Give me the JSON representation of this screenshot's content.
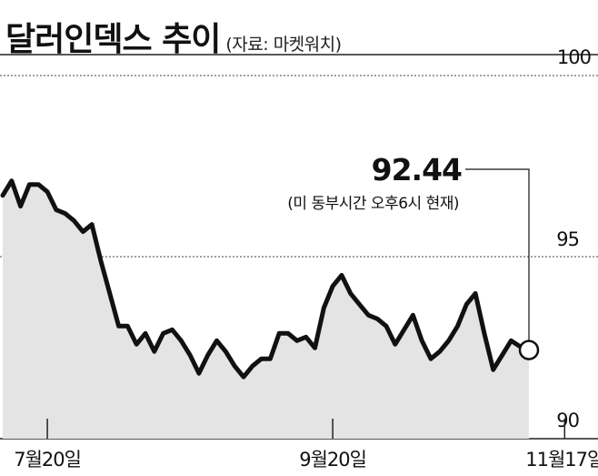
{
  "header": {
    "title": "달러인덱스 추이",
    "source": "(자료: 마켓워치)"
  },
  "chart_data": {
    "type": "area",
    "title": "달러인덱스 추이",
    "source": "(자료: 마켓워치)",
    "xlabel": "",
    "ylabel": "",
    "ylim": [
      90,
      100
    ],
    "grid": "dotted horizontal at 95 and 100",
    "yticks": [
      "100",
      "95",
      "90"
    ],
    "xticks": [
      {
        "label": "7월20일",
        "index": 5
      },
      {
        "label": "9월20일",
        "index": 37
      },
      {
        "label": "11월17일",
        "index": 63
      }
    ],
    "annotation": {
      "value": "92.44",
      "note": "(미 동부시간 오후6시 현재)"
    },
    "series": [
      {
        "values": [
          96.7,
          97.1,
          96.4,
          97.0,
          97.0,
          96.8,
          96.3,
          96.2,
          96.0,
          95.7,
          95.9,
          94.9,
          94.0,
          93.1,
          93.1,
          92.6,
          92.9,
          92.4,
          92.9,
          93.0,
          92.7,
          92.3,
          91.8,
          92.3,
          92.7,
          92.4,
          92.0,
          91.7,
          92.0,
          92.2,
          92.2,
          92.9,
          92.9,
          92.7,
          92.8,
          92.5,
          93.6,
          94.2,
          94.5,
          94.0,
          93.7,
          93.4,
          93.3,
          93.1,
          92.6,
          93.0,
          93.4,
          92.7,
          92.2,
          92.4,
          92.7,
          93.1,
          93.7,
          94.0,
          92.9,
          91.9,
          92.3,
          92.7,
          92.54,
          92.44
        ]
      }
    ]
  }
}
